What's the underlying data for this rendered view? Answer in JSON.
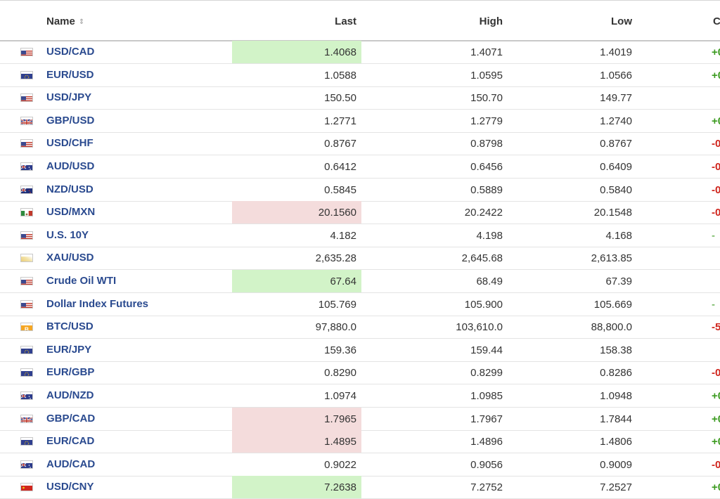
{
  "header": {
    "name": "Name",
    "last": "Last",
    "high": "High",
    "low": "Low",
    "change": "C"
  },
  "rows": [
    {
      "flag": "us",
      "name": "USD/CAD",
      "last": "1.4068",
      "high": "1.4071",
      "low": "1.4019",
      "change": "+0",
      "dir": "pos",
      "hl": "up"
    },
    {
      "flag": "eu",
      "name": "EUR/USD",
      "last": "1.0588",
      "high": "1.0595",
      "low": "1.0566",
      "change": "+0",
      "dir": "pos",
      "hl": ""
    },
    {
      "flag": "us",
      "name": "USD/JPY",
      "last": "150.50",
      "high": "150.70",
      "low": "149.77",
      "change": "",
      "dir": "",
      "hl": ""
    },
    {
      "flag": "uk",
      "name": "GBP/USD",
      "last": "1.2771",
      "high": "1.2779",
      "low": "1.2740",
      "change": "+0",
      "dir": "pos",
      "hl": ""
    },
    {
      "flag": "us",
      "name": "USD/CHF",
      "last": "0.8767",
      "high": "0.8798",
      "low": "0.8767",
      "change": "-0",
      "dir": "neg",
      "hl": ""
    },
    {
      "flag": "au",
      "name": "AUD/USD",
      "last": "0.6412",
      "high": "0.6456",
      "low": "0.6409",
      "change": "-0",
      "dir": "neg",
      "hl": ""
    },
    {
      "flag": "nz",
      "name": "NZD/USD",
      "last": "0.5845",
      "high": "0.5889",
      "low": "0.5840",
      "change": "-0",
      "dir": "neg",
      "hl": ""
    },
    {
      "flag": "mx",
      "name": "USD/MXN",
      "last": "20.1560",
      "high": "20.2422",
      "low": "20.1548",
      "change": "-0",
      "dir": "neg",
      "hl": "down"
    },
    {
      "flag": "us",
      "name": "U.S. 10Y",
      "last": "4.182",
      "high": "4.198",
      "low": "4.168",
      "change": "-",
      "dir": "neu",
      "hl": ""
    },
    {
      "flag": "gold",
      "name": "XAU/USD",
      "last": "2,635.28",
      "high": "2,645.68",
      "low": "2,613.85",
      "change": "",
      "dir": "",
      "hl": ""
    },
    {
      "flag": "us",
      "name": "Crude Oil WTI",
      "last": "67.64",
      "high": "68.49",
      "low": "67.39",
      "change": "",
      "dir": "",
      "hl": "up"
    },
    {
      "flag": "us",
      "name": "Dollar Index Futures",
      "last": "105.769",
      "high": "105.900",
      "low": "105.669",
      "change": "-",
      "dir": "neu",
      "hl": ""
    },
    {
      "flag": "btc",
      "name": "BTC/USD",
      "last": "97,880.0",
      "high": "103,610.0",
      "low": "88,800.0",
      "change": "-5",
      "dir": "neg",
      "hl": ""
    },
    {
      "flag": "eu",
      "name": "EUR/JPY",
      "last": "159.36",
      "high": "159.44",
      "low": "158.38",
      "change": "",
      "dir": "",
      "hl": ""
    },
    {
      "flag": "eu",
      "name": "EUR/GBP",
      "last": "0.8290",
      "high": "0.8299",
      "low": "0.8286",
      "change": "-0",
      "dir": "neg",
      "hl": ""
    },
    {
      "flag": "au",
      "name": "AUD/NZD",
      "last": "1.0974",
      "high": "1.0985",
      "low": "1.0948",
      "change": "+0",
      "dir": "pos",
      "hl": ""
    },
    {
      "flag": "uk",
      "name": "GBP/CAD",
      "last": "1.7965",
      "high": "1.7967",
      "low": "1.7844",
      "change": "+0",
      "dir": "pos",
      "hl": "down"
    },
    {
      "flag": "eu",
      "name": "EUR/CAD",
      "last": "1.4895",
      "high": "1.4896",
      "low": "1.4806",
      "change": "+0",
      "dir": "pos",
      "hl": "down"
    },
    {
      "flag": "au",
      "name": "AUD/CAD",
      "last": "0.9022",
      "high": "0.9056",
      "low": "0.9009",
      "change": "-0",
      "dir": "neg",
      "hl": ""
    },
    {
      "flag": "cn",
      "name": "USD/CNY",
      "last": "7.2638",
      "high": "7.2752",
      "low": "7.2527",
      "change": "+0",
      "dir": "pos",
      "hl": "up"
    }
  ]
}
